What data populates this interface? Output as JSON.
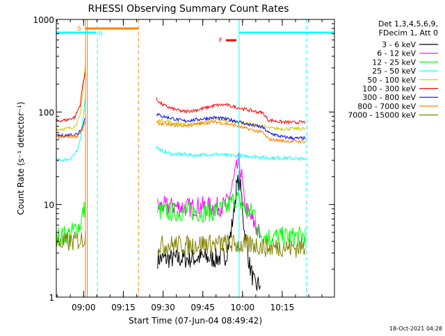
{
  "chart_data": {
    "type": "line",
    "title": "RHESSI Observing Summary Count Rates",
    "xlabel": "Start Time (07-Jun-04 08:49:42)",
    "ylabel": "Count Rate (s⁻¹ detector⁻¹)",
    "y_scale": "log",
    "ylim": [
      1,
      1000
    ],
    "y_ticks": [
      {
        "value": 1,
        "label": "1"
      },
      {
        "value": 10,
        "label": "10"
      },
      {
        "value": 100,
        "label": "100"
      },
      {
        "value": 1000,
        "label": "1000"
      }
    ],
    "xlim_minutes": [
      0,
      105
    ],
    "x_ticks": [
      {
        "minute": 10.3,
        "label": "09:00"
      },
      {
        "minute": 25.3,
        "label": "09:15"
      },
      {
        "minute": 40.3,
        "label": "09:30"
      },
      {
        "minute": 55.3,
        "label": "09:45"
      },
      {
        "minute": 70.3,
        "label": "10:00"
      },
      {
        "minute": 85.3,
        "label": "10:15"
      }
    ],
    "legend_header": [
      "Det 1,3,4,5,6,9,",
      "FDecim 1, Att 0"
    ],
    "series": [
      {
        "name": "3 - 6 keV",
        "color": "#000000",
        "points": [
          [
            0,
            null
          ],
          [
            37,
            null
          ],
          [
            38,
            2.6
          ],
          [
            45,
            2.6
          ],
          [
            50,
            2.6
          ],
          [
            55,
            2.7
          ],
          [
            60,
            2.6
          ],
          [
            64,
            2.8
          ],
          [
            66,
            5
          ],
          [
            68,
            15
          ],
          [
            69,
            19
          ],
          [
            70,
            12
          ],
          [
            71,
            5
          ],
          [
            72,
            3.5
          ],
          [
            73,
            2.2
          ],
          [
            75,
            1.3
          ],
          [
            77,
            1.4
          ],
          [
            78,
            null
          ]
        ]
      },
      {
        "name": "6 - 12 keV",
        "color": "#ff00ff",
        "points": [
          [
            0,
            null
          ],
          [
            37,
            null
          ],
          [
            38,
            9.5
          ],
          [
            45,
            9.5
          ],
          [
            50,
            9.3
          ],
          [
            55,
            9.6
          ],
          [
            60,
            9.4
          ],
          [
            64,
            9.8
          ],
          [
            66,
            14
          ],
          [
            68,
            24
          ],
          [
            69,
            29
          ],
          [
            70,
            20
          ],
          [
            71,
            10
          ],
          [
            73,
            7.5
          ],
          [
            75,
            6
          ],
          [
            77,
            4.5
          ],
          [
            78,
            null
          ]
        ]
      },
      {
        "name": "12 - 25 keV",
        "color": "#00ff00",
        "points": [
          [
            0,
            4.5
          ],
          [
            5,
            4.8
          ],
          [
            9,
            6
          ],
          [
            10,
            8
          ],
          [
            11,
            9.5
          ],
          [
            12,
            null
          ],
          [
            37,
            null
          ],
          [
            38,
            8.5
          ],
          [
            45,
            8.3
          ],
          [
            50,
            8.6
          ],
          [
            55,
            8.2
          ],
          [
            60,
            8.5
          ],
          [
            64,
            9
          ],
          [
            66,
            10.5
          ],
          [
            68,
            12
          ],
          [
            70,
            10
          ],
          [
            72,
            8.5
          ],
          [
            75,
            8.2
          ],
          [
            76,
            5
          ],
          [
            80,
            4.5
          ],
          [
            85,
            4.5
          ],
          [
            90,
            4.5
          ],
          [
            94,
            4.6
          ]
        ]
      },
      {
        "name": "25 - 50 keV",
        "color": "#00ffff",
        "points": [
          [
            0,
            30
          ],
          [
            5,
            31
          ],
          [
            8,
            38
          ],
          [
            9,
            50
          ],
          [
            10,
            80
          ],
          [
            11,
            150
          ],
          [
            11.7,
            null
          ],
          [
            37,
            null
          ],
          [
            37.5,
            44
          ],
          [
            38.5,
            40
          ],
          [
            40,
            38
          ],
          [
            44,
            35
          ],
          [
            48,
            35
          ],
          [
            52,
            34
          ],
          [
            56,
            34.5
          ],
          [
            60,
            35
          ],
          [
            65,
            34
          ],
          [
            70,
            33.5
          ],
          [
            75,
            33
          ],
          [
            80,
            32
          ],
          [
            85,
            32
          ],
          [
            90,
            31.5
          ],
          [
            94,
            31
          ]
        ]
      },
      {
        "name": "50 - 100 keV",
        "color": "#cccc00",
        "points": [
          [
            0,
            65
          ],
          [
            4,
            66
          ],
          [
            7,
            70
          ],
          [
            9,
            90
          ],
          [
            10,
            160
          ],
          [
            11,
            350
          ],
          [
            11.7,
            null
          ],
          [
            37,
            null
          ],
          [
            37.5,
            78
          ],
          [
            40,
            82
          ],
          [
            44,
            76
          ],
          [
            48,
            74
          ],
          [
            52,
            75
          ],
          [
            56,
            77
          ],
          [
            60,
            82
          ],
          [
            65,
            80
          ],
          [
            70,
            76
          ],
          [
            75,
            72
          ],
          [
            78,
            71
          ],
          [
            80,
            67
          ],
          [
            85,
            66
          ],
          [
            90,
            66
          ],
          [
            94,
            66
          ]
        ]
      },
      {
        "name": "100 - 300 keV",
        "color": "#ff0000",
        "points": [
          [
            0,
            80
          ],
          [
            4,
            82
          ],
          [
            7,
            88
          ],
          [
            9,
            120
          ],
          [
            10,
            200
          ],
          [
            11,
            280
          ],
          [
            11.7,
            null
          ],
          [
            37,
            null
          ],
          [
            37.5,
            140
          ],
          [
            40,
            120
          ],
          [
            44,
            108
          ],
          [
            48,
            101
          ],
          [
            52,
            104
          ],
          [
            56,
            110
          ],
          [
            60,
            118
          ],
          [
            64,
            120
          ],
          [
            68,
            112
          ],
          [
            72,
            106
          ],
          [
            76,
            100
          ],
          [
            78,
            98
          ],
          [
            80,
            82
          ],
          [
            85,
            78
          ],
          [
            90,
            77
          ],
          [
            94,
            78
          ]
        ]
      },
      {
        "name": "300 - 800 keV",
        "color": "#0000ff",
        "points": [
          [
            0,
            55
          ],
          [
            4,
            56
          ],
          [
            8,
            58
          ],
          [
            10,
            70
          ],
          [
            11,
            90
          ],
          [
            11.7,
            null
          ],
          [
            37,
            null
          ],
          [
            37.5,
            95
          ],
          [
            40,
            90
          ],
          [
            44,
            85
          ],
          [
            48,
            80
          ],
          [
            52,
            82
          ],
          [
            56,
            85
          ],
          [
            60,
            87
          ],
          [
            64,
            84
          ],
          [
            68,
            80
          ],
          [
            72,
            74
          ],
          [
            76,
            70
          ],
          [
            78,
            68
          ],
          [
            80,
            60
          ],
          [
            85,
            54
          ],
          [
            90,
            52
          ],
          [
            94,
            52
          ]
        ]
      },
      {
        "name": "800 - 7000 keV",
        "color": "#ff8000",
        "points": [
          [
            0,
            53
          ],
          [
            4,
            54
          ],
          [
            8,
            55
          ],
          [
            10,
            65
          ],
          [
            11,
            80
          ],
          [
            11.7,
            null
          ],
          [
            37,
            null
          ],
          [
            37.5,
            76
          ],
          [
            40,
            75
          ],
          [
            44,
            72
          ],
          [
            48,
            71
          ],
          [
            52,
            73
          ],
          [
            56,
            76
          ],
          [
            60,
            78
          ],
          [
            64,
            75
          ],
          [
            68,
            71
          ],
          [
            72,
            66
          ],
          [
            76,
            62
          ],
          [
            78,
            60
          ],
          [
            80,
            51
          ],
          [
            85,
            49
          ],
          [
            90,
            48
          ],
          [
            94,
            48
          ]
        ]
      },
      {
        "name": "7000 - 15000 keV",
        "color": "#808000",
        "points": [
          [
            0,
            3.8
          ],
          [
            5,
            3.9
          ],
          [
            10,
            4.2
          ],
          [
            11,
            4.6
          ],
          [
            12,
            null
          ],
          [
            37,
            null
          ],
          [
            38,
            3.6
          ],
          [
            45,
            3.7
          ],
          [
            50,
            3.6
          ],
          [
            55,
            3.8
          ],
          [
            60,
            3.7
          ],
          [
            65,
            3.8
          ],
          [
            70,
            3.6
          ],
          [
            75,
            3.7
          ],
          [
            80,
            3.4
          ],
          [
            85,
            3.5
          ],
          [
            90,
            3.4
          ],
          [
            94,
            3.5
          ]
        ]
      }
    ],
    "annotations": [
      {
        "label": "S",
        "color": "#ff8000",
        "bar_minutes": [
          11,
          31
        ]
      },
      {
        "label": "N",
        "color": "#00ffff",
        "bar_minutes": [
          0,
          15
        ]
      },
      {
        "label": "F",
        "color": "#ff0000",
        "bar_minutes": [
          64,
          68
        ]
      }
    ],
    "night_bar_right_minutes": [
      69,
      105
    ],
    "vlines": [
      {
        "minute": 11,
        "color": "#ff8000",
        "style": "solid"
      },
      {
        "minute": 11.7,
        "color": "#ff8000",
        "style": "solid"
      },
      {
        "minute": 15.5,
        "color": "#00ffff",
        "style": "dashed"
      },
      {
        "minute": 31,
        "color": "#ff8000",
        "style": "dashed"
      },
      {
        "minute": 69,
        "color": "#00ffff",
        "style": "solid"
      },
      {
        "minute": 94.5,
        "color": "#00ffff",
        "style": "dashed"
      }
    ]
  },
  "footer_timestamp": "18-Oct-2021 04:28"
}
